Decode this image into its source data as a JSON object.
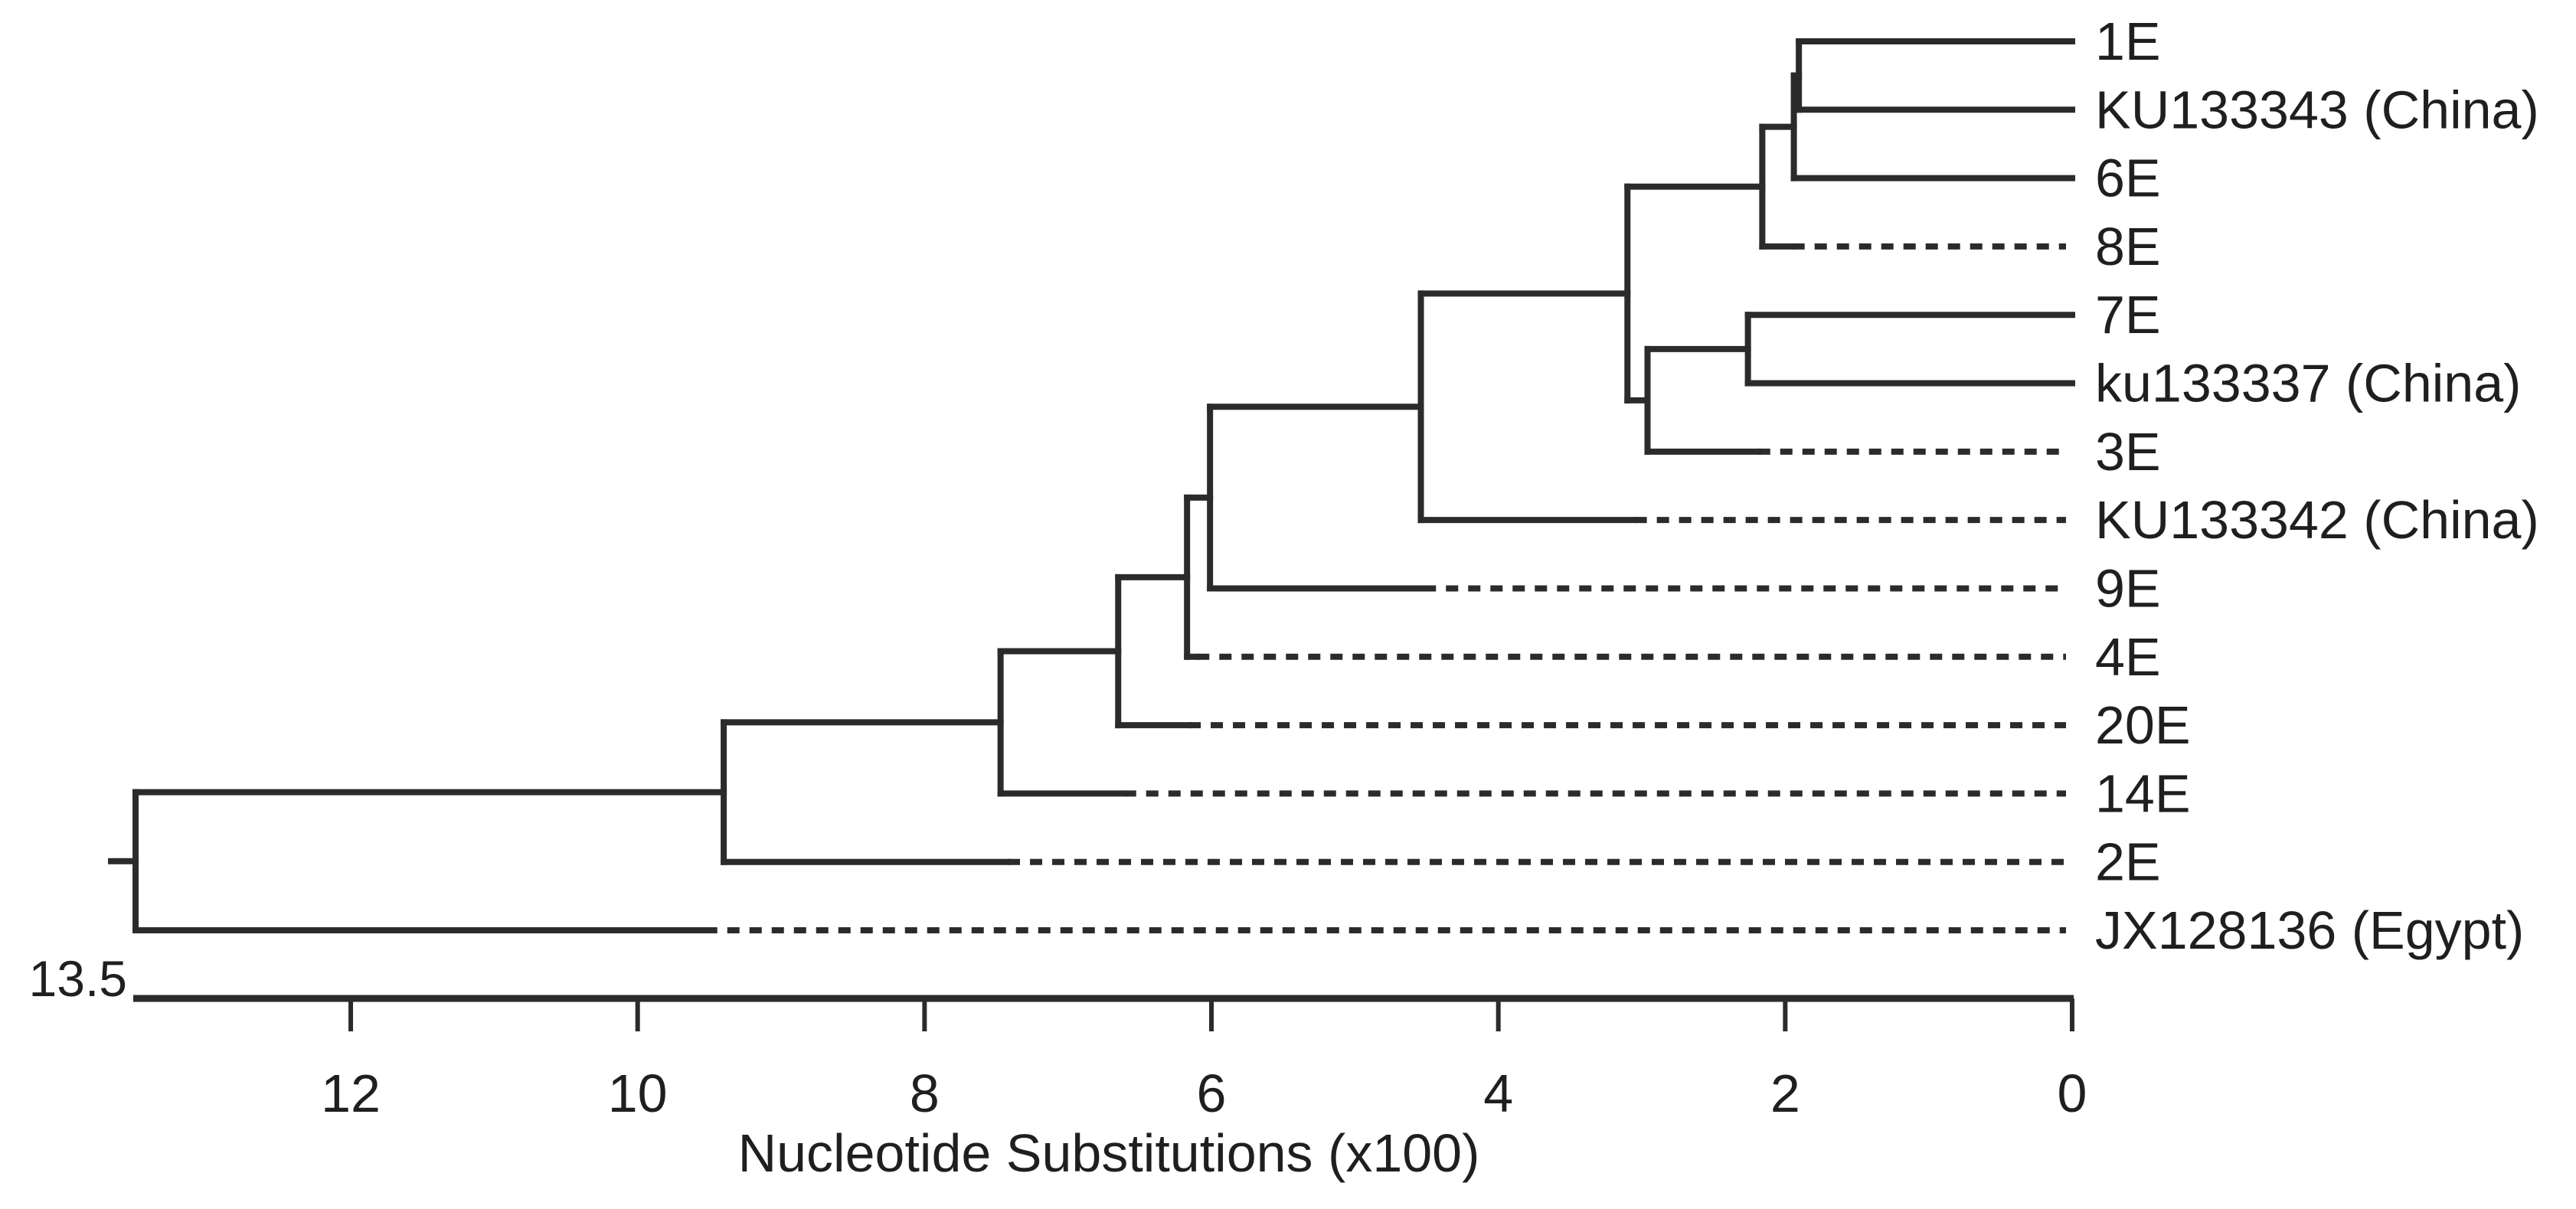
{
  "chart_data": {
    "type": "dendrogram",
    "title": "",
    "xlabel": "Nucleotide Substitutions (x100)",
    "ylabel": "",
    "axis": {
      "min": 0,
      "max": 13.5,
      "max_label": "13.5",
      "ticks": [
        12,
        10,
        8,
        6,
        4,
        2,
        0
      ],
      "direction": "values-increase-right-to-left",
      "grid": false,
      "units": "nucleotide substitutions x100"
    },
    "legend": null,
    "leaves": [
      {
        "label": "1E",
        "dashed": false,
        "solid_end": 0
      },
      {
        "label": "KU133343 (China)",
        "dashed": false,
        "solid_end": 0
      },
      {
        "label": "6E",
        "dashed": false,
        "solid_end": 0
      },
      {
        "label": "8E",
        "dashed": true,
        "solid_end": 1.95
      },
      {
        "label": "7E",
        "dashed": false,
        "solid_end": 0
      },
      {
        "label": "ku133337 (China)",
        "dashed": false,
        "solid_end": 0
      },
      {
        "label": "3E",
        "dashed": true,
        "solid_end": 2.19
      },
      {
        "label": "KU133342 (China)",
        "dashed": true,
        "solid_end": 3.05
      },
      {
        "label": "9E",
        "dashed": true,
        "solid_end": 4.52
      },
      {
        "label": "4E",
        "dashed": true,
        "solid_end": 6.1
      },
      {
        "label": "20E",
        "dashed": true,
        "solid_end": 6.16
      },
      {
        "label": "14E",
        "dashed": true,
        "solid_end": 6.61
      },
      {
        "label": "2E",
        "dashed": true,
        "solid_end": 7.42
      },
      {
        "label": "JX128136 (Egypt)",
        "dashed": true,
        "solid_end": 9.53
      }
    ],
    "tree": {
      "depth": 13.5,
      "children": [
        {
          "depth": 9.4,
          "children": [
            {
              "depth": 7.47,
              "children": [
                {
                  "depth": 6.65,
                  "children": [
                    {
                      "depth": 6.17,
                      "children": [
                        {
                          "depth": 6.01,
                          "children": [
                            {
                              "depth": 4.54,
                              "children": [
                                {
                                  "depth": 3.1,
                                  "children": [
                                    {
                                      "depth": 2.16,
                                      "children": [
                                        {
                                          "depth": 1.94,
                                          "children": [
                                            {
                                              "depth": 1.905,
                                              "children": [
                                                {
                                                  "leaf": "1E"
                                                },
                                                {
                                                  "leaf": "KU133343 (China)"
                                                }
                                              ]
                                            },
                                            {
                                              "leaf": "6E"
                                            }
                                          ]
                                        },
                                        {
                                          "leaf": "8E"
                                        }
                                      ]
                                    },
                                    {
                                      "depth": 2.96,
                                      "children": [
                                        {
                                          "depth": 2.26,
                                          "children": [
                                            {
                                              "leaf": "7E"
                                            },
                                            {
                                              "leaf": "ku133337 (China)"
                                            }
                                          ]
                                        },
                                        {
                                          "leaf": "3E"
                                        }
                                      ]
                                    }
                                  ]
                                },
                                {
                                  "leaf": "KU133342 (China)"
                                }
                              ]
                            },
                            {
                              "leaf": "9E"
                            }
                          ]
                        },
                        {
                          "leaf": "4E"
                        }
                      ]
                    },
                    {
                      "leaf": "20E"
                    }
                  ]
                },
                {
                  "leaf": "14E"
                }
              ]
            },
            {
              "leaf": "2E"
            }
          ]
        },
        {
          "leaf": "JX128136 (Egypt)"
        }
      ]
    },
    "colors": {
      "line": "#2b2b2b",
      "text": "#1f1f1f",
      "background": "#ffffff"
    }
  }
}
